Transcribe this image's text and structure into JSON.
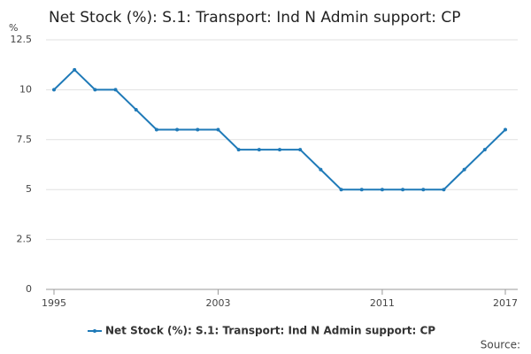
{
  "chart_data": {
    "type": "line",
    "title": "Net Stock (%): S.1: Transport: Ind N Admin support: CP",
    "y_label": "%",
    "source": "Source:",
    "x": [
      1995,
      1996,
      1997,
      1998,
      1999,
      2000,
      2001,
      2002,
      2003,
      2004,
      2005,
      2006,
      2007,
      2008,
      2009,
      2010,
      2011,
      2012,
      2013,
      2014,
      2015,
      2016,
      2017
    ],
    "series": [
      {
        "name": "Net Stock (%): S.1: Transport: Ind N Admin support: CP",
        "color": "#1f7ab8",
        "values": [
          10,
          11,
          10,
          10,
          9,
          8,
          8,
          8,
          8,
          7,
          7,
          7,
          7,
          6,
          5,
          5,
          5,
          5,
          5,
          5,
          6,
          7,
          8
        ]
      }
    ],
    "xlim": [
      1995,
      2017
    ],
    "xticks": [
      1995,
      2003,
      2011,
      2017
    ],
    "ylim": [
      0,
      12.5
    ],
    "yticks": [
      0,
      2.5,
      5,
      7.5,
      10,
      12.5
    ],
    "grid": true,
    "legend": "bottom"
  }
}
